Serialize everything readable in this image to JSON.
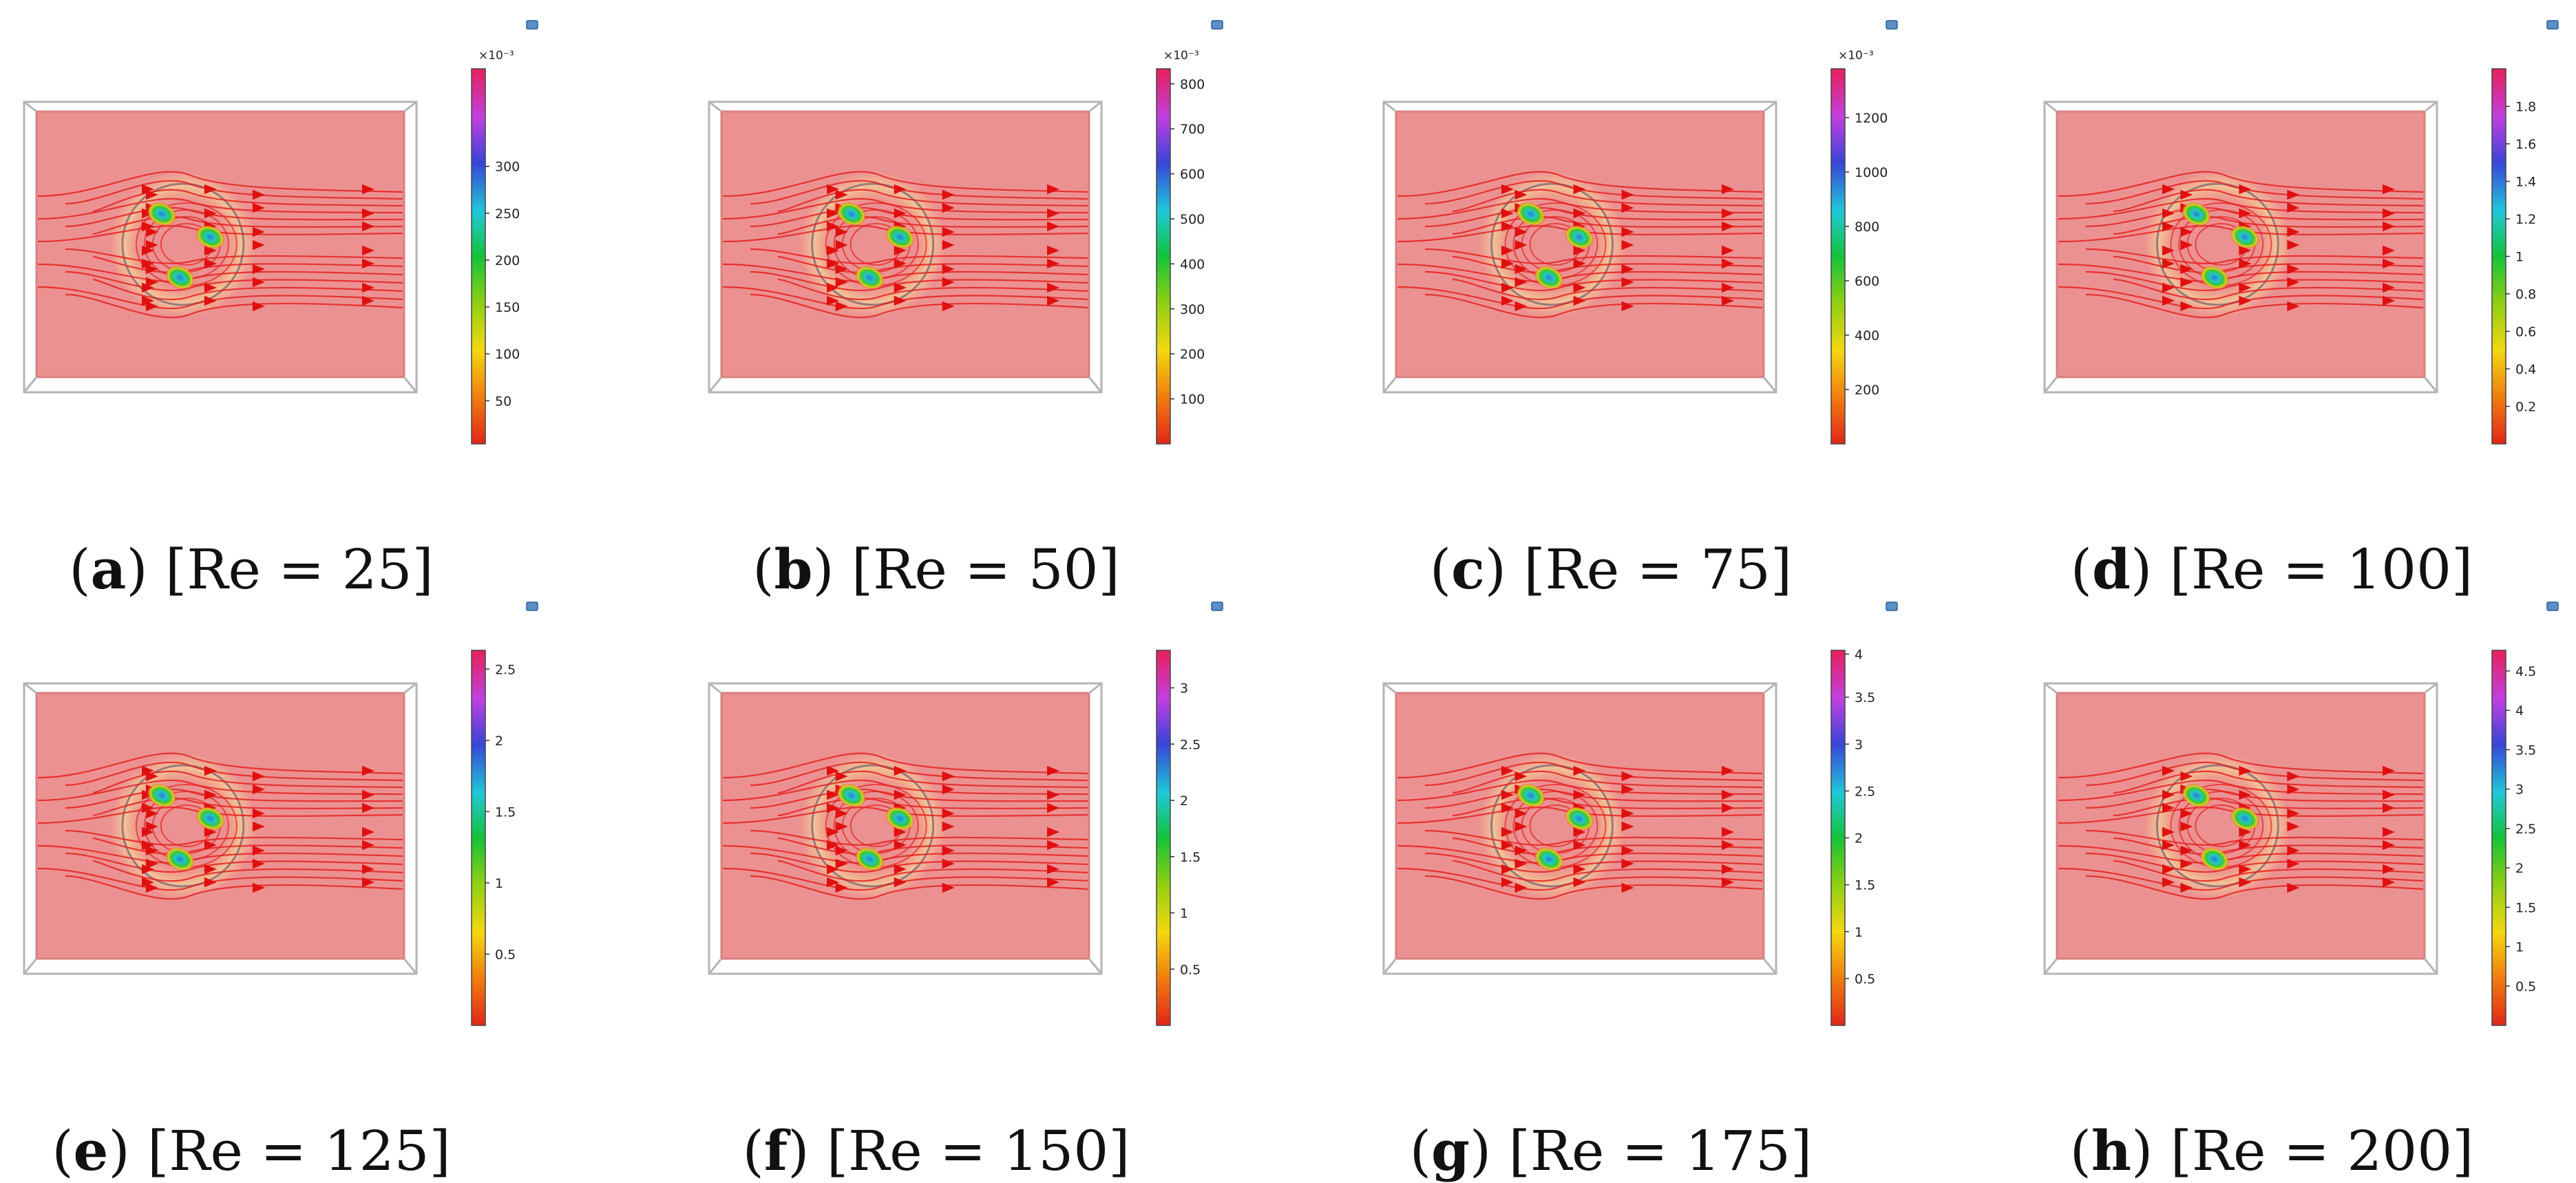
{
  "panels": [
    {
      "letter": "a",
      "caption_rest": ") [Re = 25]",
      "exponent_label": "×10⁻³",
      "ticks": [
        "50",
        "100",
        "150",
        "200",
        "250",
        "300"
      ],
      "tick_fracs": [
        0.115,
        0.24,
        0.365,
        0.49,
        0.615,
        0.74
      ]
    },
    {
      "letter": "b",
      "caption_rest": ") [Re = 50]",
      "exponent_label": "×10⁻³",
      "ticks": [
        "100",
        "200",
        "300",
        "400",
        "500",
        "600",
        "700",
        "800"
      ],
      "tick_fracs": [
        0.12,
        0.24,
        0.36,
        0.48,
        0.6,
        0.72,
        0.84,
        0.96
      ]
    },
    {
      "letter": "c",
      "caption_rest": ") [Re = 75]",
      "exponent_label": "×10⁻³",
      "ticks": [
        "200",
        "400",
        "600",
        "800",
        "1000",
        "1200"
      ],
      "tick_fracs": [
        0.145,
        0.29,
        0.435,
        0.58,
        0.725,
        0.87
      ]
    },
    {
      "letter": "d",
      "caption_rest": ") [Re = 100]",
      "exponent_label": "",
      "ticks": [
        "0.2",
        "0.4",
        "0.6",
        "0.8",
        "1",
        "1.2",
        "1.4",
        "1.6",
        "1.8"
      ],
      "tick_fracs": [
        0.1,
        0.2,
        0.3,
        0.4,
        0.5,
        0.6,
        0.7,
        0.8,
        0.9
      ]
    },
    {
      "letter": "e",
      "caption_rest": ") [Re = 125]",
      "exponent_label": "",
      "ticks": [
        "0.5",
        "1",
        "1.5",
        "2",
        "2.5"
      ],
      "tick_fracs": [
        0.19,
        0.38,
        0.57,
        0.76,
        0.95
      ]
    },
    {
      "letter": "f",
      "caption_rest": ") [Re = 150]",
      "exponent_label": "",
      "ticks": [
        "0.5",
        "1",
        "1.5",
        "2",
        "2.5",
        "3"
      ],
      "tick_fracs": [
        0.15,
        0.3,
        0.45,
        0.6,
        0.75,
        0.9
      ]
    },
    {
      "letter": "g",
      "caption_rest": ") [Re = 175]",
      "exponent_label": "",
      "ticks": [
        "0.5",
        "1",
        "1.5",
        "2",
        "2.5",
        "3",
        "3.5",
        "4"
      ],
      "tick_fracs": [
        0.125,
        0.25,
        0.375,
        0.5,
        0.625,
        0.75,
        0.875,
        0.99
      ]
    },
    {
      "letter": "h",
      "caption_rest": ") [Re = 200]",
      "exponent_label": "",
      "ticks": [
        "0.5",
        "1",
        "1.5",
        "2",
        "2.5",
        "3",
        "3.5",
        "4",
        "4.5"
      ],
      "tick_fracs": [
        0.105,
        0.21,
        0.315,
        0.42,
        0.525,
        0.63,
        0.735,
        0.84,
        0.945
      ]
    }
  ],
  "colors": {
    "domain_fill": "#ec9191",
    "frame": "#b5b5b5",
    "streamline": "#e52121",
    "arrow": "#e01010",
    "cylinder": "#9a7a7a"
  }
}
